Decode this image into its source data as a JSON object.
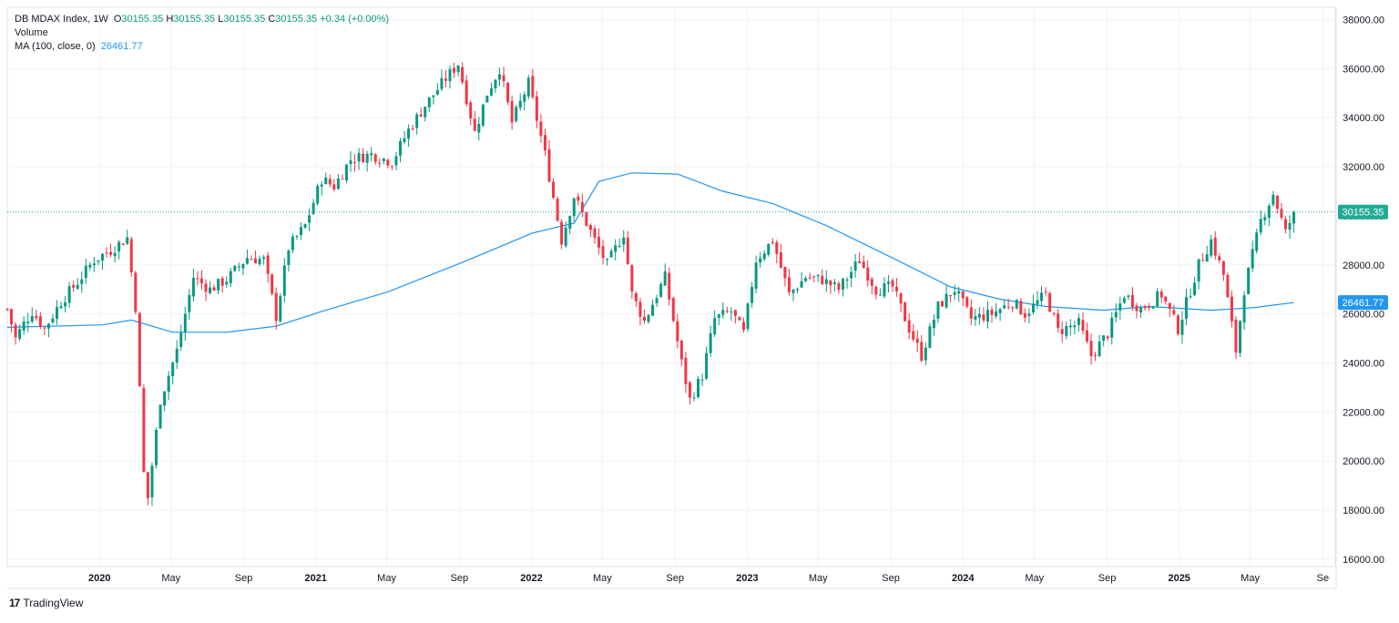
{
  "legend": {
    "symbol": "DB MDAX Index, 1W",
    "o_label": "O",
    "o_value": "30155.35",
    "h_label": "H",
    "h_value": "30155.35",
    "l_label": "L",
    "l_value": "30155.35",
    "c_label": "C",
    "c_value": "30155.35",
    "change": "+0.34 (+0.00%)",
    "volume": "Volume",
    "ma_label": "MA (100, close, 0)",
    "ma_value": "26461.77"
  },
  "footer": {
    "brand": "TradingView"
  },
  "colors": {
    "up": "#089981",
    "down": "#f23645",
    "ma": "#2196f3",
    "grid": "#f0f3fa",
    "axis_text": "#131722",
    "price_badge": "#22ab94",
    "ma_badge": "#2196f3"
  },
  "chart_data": {
    "type": "candlestick",
    "title": "DB MDAX Index, 1W",
    "interval": "1W",
    "ylim": [
      15700,
      38500
    ],
    "y_ticks": [
      "38000.00",
      "36000.00",
      "34000.00",
      "32000.00",
      "30000.00",
      "28000.00",
      "26000.00",
      "24000.00",
      "22000.00",
      "20000.00",
      "18000.00",
      "16000.00"
    ],
    "x_tick_labels": [
      "2020",
      "May",
      "Sep",
      "2021",
      "May",
      "Sep",
      "2022",
      "May",
      "Sep",
      "2023",
      "May",
      "Sep",
      "2024",
      "May",
      "Sep",
      "2025",
      "May",
      "Se"
    ],
    "last_price": "30155.35",
    "ma_last": "26461.77",
    "x_start": "2019-07-29",
    "x_end": "2025-09-22",
    "close_path": [
      [
        "2019-07-29",
        26200
      ],
      [
        "2019-08-12",
        25000
      ],
      [
        "2019-08-26",
        25600
      ],
      [
        "2019-09-09",
        26100
      ],
      [
        "2019-09-30",
        25400
      ],
      [
        "2019-10-28",
        26500
      ],
      [
        "2019-11-25",
        27300
      ],
      [
        "2019-12-23",
        28200
      ],
      [
        "2020-01-20",
        28600
      ],
      [
        "2020-02-17",
        29100
      ],
      [
        "2020-03-02",
        26300
      ],
      [
        "2020-03-16",
        19500
      ],
      [
        "2020-03-23",
        18500
      ],
      [
        "2020-04-13",
        22500
      ],
      [
        "2020-05-11",
        24500
      ],
      [
        "2020-06-08",
        27500
      ],
      [
        "2020-07-06",
        27000
      ],
      [
        "2020-08-03",
        27400
      ],
      [
        "2020-09-07",
        28300
      ],
      [
        "2020-10-05",
        28200
      ],
      [
        "2020-10-26",
        25900
      ],
      [
        "2020-11-16",
        28700
      ],
      [
        "2020-12-14",
        29600
      ],
      [
        "2021-01-11",
        31500
      ],
      [
        "2021-02-01",
        31200
      ],
      [
        "2021-03-01",
        32300
      ],
      [
        "2021-04-05",
        32500
      ],
      [
        "2021-05-10",
        32200
      ],
      [
        "2021-06-07",
        33500
      ],
      [
        "2021-07-05",
        34500
      ],
      [
        "2021-08-09",
        35600
      ],
      [
        "2021-08-30",
        36200
      ],
      [
        "2021-09-27",
        33400
      ],
      [
        "2021-10-18",
        35000
      ],
      [
        "2021-11-08",
        36000
      ],
      [
        "2021-11-29",
        33800
      ],
      [
        "2021-12-27",
        35400
      ],
      [
        "2022-01-24",
        32500
      ],
      [
        "2022-02-21",
        29000
      ],
      [
        "2022-03-14",
        30800
      ],
      [
        "2022-04-18",
        29000
      ],
      [
        "2022-05-09",
        28000
      ],
      [
        "2022-06-06",
        29300
      ],
      [
        "2022-06-20",
        26800
      ],
      [
        "2022-07-11",
        25700
      ],
      [
        "2022-08-15",
        27500
      ],
      [
        "2022-09-12",
        24000
      ],
      [
        "2022-09-26",
        22500
      ],
      [
        "2022-10-17",
        23500
      ],
      [
        "2022-11-07",
        25800
      ],
      [
        "2022-12-05",
        26100
      ],
      [
        "2022-12-26",
        25200
      ],
      [
        "2023-01-16",
        28200
      ],
      [
        "2023-02-13",
        29000
      ],
      [
        "2023-03-13",
        26800
      ],
      [
        "2023-04-10",
        27500
      ],
      [
        "2023-05-08",
        27400
      ],
      [
        "2023-06-05",
        27000
      ],
      [
        "2023-07-10",
        28200
      ],
      [
        "2023-08-07",
        27000
      ],
      [
        "2023-09-04",
        27100
      ],
      [
        "2023-10-02",
        25400
      ],
      [
        "2023-10-23",
        24300
      ],
      [
        "2023-11-20",
        26300
      ],
      [
        "2023-12-18",
        27000
      ],
      [
        "2024-01-15",
        25800
      ],
      [
        "2024-02-19",
        26000
      ],
      [
        "2024-03-25",
        26500
      ],
      [
        "2024-04-15",
        26000
      ],
      [
        "2024-05-20",
        26800
      ],
      [
        "2024-06-10",
        25300
      ],
      [
        "2024-07-15",
        25600
      ],
      [
        "2024-08-05",
        24300
      ],
      [
        "2024-09-02",
        25200
      ],
      [
        "2024-09-30",
        26800
      ],
      [
        "2024-10-28",
        26200
      ],
      [
        "2024-12-02",
        26800
      ],
      [
        "2024-12-30",
        25400
      ],
      [
        "2025-02-03",
        28000
      ],
      [
        "2025-02-24",
        29000
      ],
      [
        "2025-03-17",
        27600
      ],
      [
        "2025-04-07",
        24500
      ],
      [
        "2025-04-21",
        27000
      ],
      [
        "2025-05-19",
        29800
      ],
      [
        "2025-06-09",
        30900
      ],
      [
        "2025-06-30",
        29300
      ],
      [
        "2025-07-14",
        30155.35
      ]
    ],
    "ma_path": [
      [
        "2019-07-29",
        25450
      ],
      [
        "2020-01-06",
        25550
      ],
      [
        "2020-02-24",
        25750
      ],
      [
        "2020-05-04",
        25250
      ],
      [
        "2020-08-03",
        25250
      ],
      [
        "2020-10-26",
        25500
      ],
      [
        "2021-01-11",
        26100
      ],
      [
        "2021-05-03",
        26900
      ],
      [
        "2021-09-06",
        28100
      ],
      [
        "2022-01-03",
        29300
      ],
      [
        "2022-03-14",
        29700
      ],
      [
        "2022-04-25",
        31400
      ],
      [
        "2022-06-20",
        31750
      ],
      [
        "2022-09-05",
        31700
      ],
      [
        "2022-11-21",
        31000
      ],
      [
        "2023-02-13",
        30500
      ],
      [
        "2023-05-15",
        29600
      ],
      [
        "2023-09-11",
        28200
      ],
      [
        "2023-12-11",
        27100
      ],
      [
        "2024-03-04",
        26600
      ],
      [
        "2024-05-20",
        26300
      ],
      [
        "2024-08-26",
        26150
      ],
      [
        "2024-11-11",
        26300
      ],
      [
        "2025-02-24",
        26150
      ],
      [
        "2025-05-05",
        26250
      ],
      [
        "2025-07-14",
        26462
      ]
    ]
  }
}
